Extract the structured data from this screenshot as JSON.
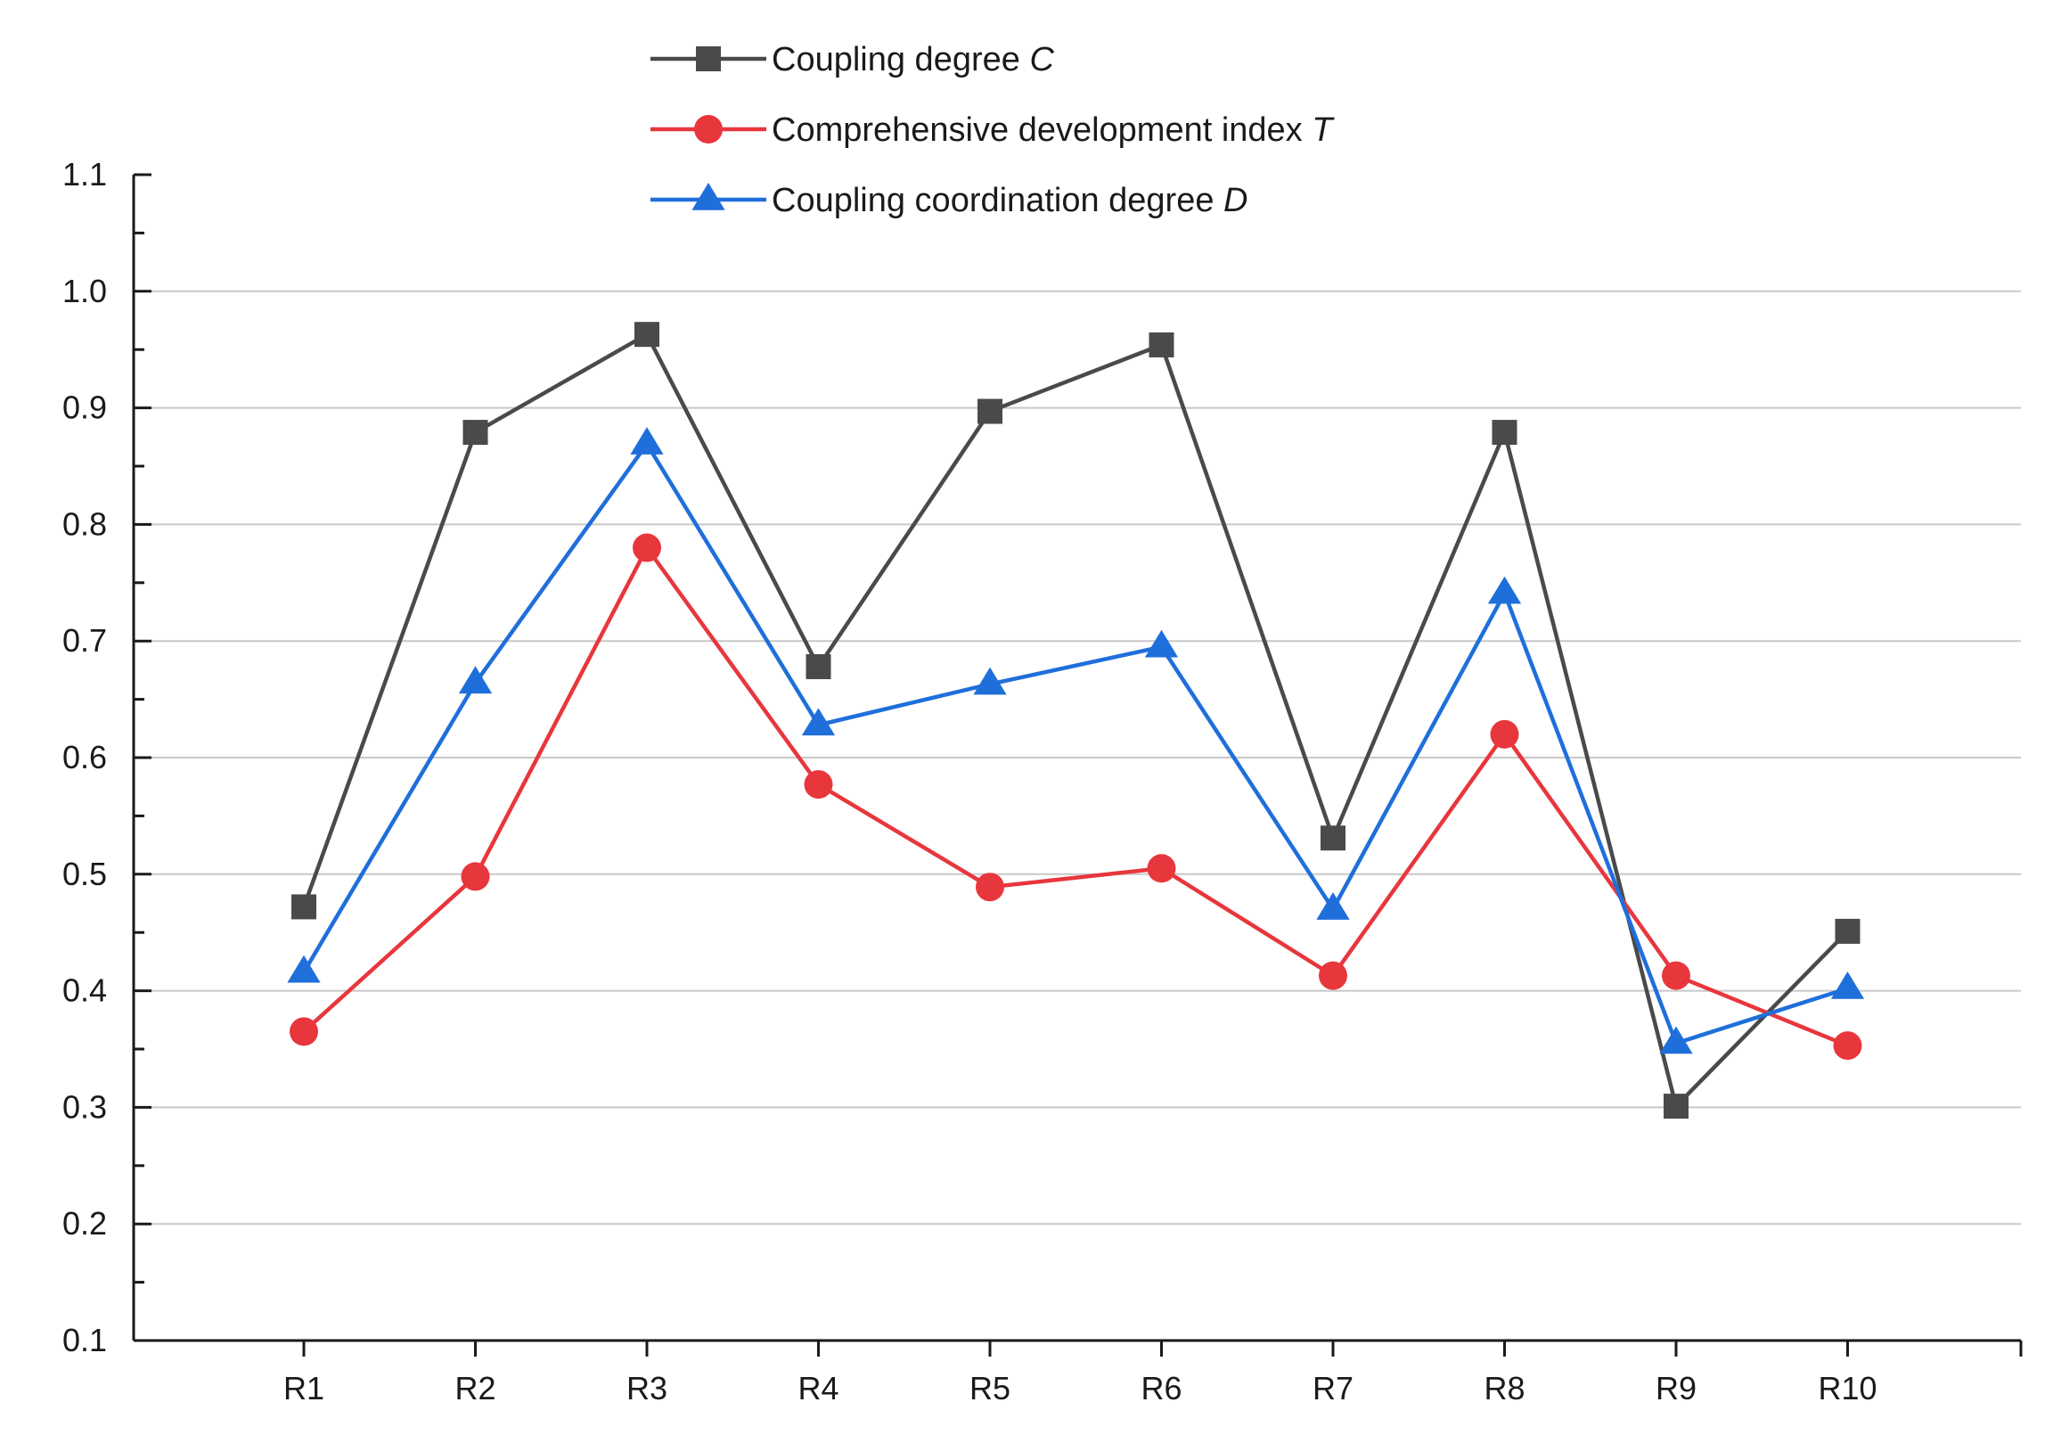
{
  "chart_data": {
    "type": "line",
    "title": "",
    "xlabel": "",
    "ylabel": "",
    "categories": [
      "R1",
      "R2",
      "R3",
      "R4",
      "R5",
      "R6",
      "R7",
      "R8",
      "R9",
      "R10"
    ],
    "ylim": [
      0.1,
      1.1
    ],
    "yticks": [
      "0.1",
      "0.2",
      "0.3",
      "0.4",
      "0.5",
      "0.6",
      "0.7",
      "0.8",
      "0.9",
      "1.0",
      "1.1"
    ],
    "grid": true,
    "legend_position": "top-center",
    "series": [
      {
        "name": "Coupling degree C",
        "label_text": "Coupling degree ",
        "label_var": "C",
        "color": "#4a4a4a",
        "marker": "square",
        "values": [
          0.472,
          0.879,
          0.963,
          0.678,
          0.897,
          0.954,
          0.531,
          0.879,
          0.301,
          0.451
        ]
      },
      {
        "name": "Comprehensive development index T",
        "label_text": "Comprehensive development index ",
        "label_var": "T",
        "color": "#e8363d",
        "marker": "circle",
        "values": [
          0.365,
          0.498,
          0.78,
          0.577,
          0.489,
          0.505,
          0.413,
          0.62,
          0.413,
          0.353
        ]
      },
      {
        "name": "Coupling coordination degree D",
        "label_text": "Coupling coordination degree ",
        "label_var": "D",
        "color": "#1f6fdb",
        "marker": "triangle",
        "values": [
          0.416,
          0.664,
          0.869,
          0.628,
          0.663,
          0.695,
          0.47,
          0.741,
          0.355,
          0.402
        ]
      }
    ]
  }
}
